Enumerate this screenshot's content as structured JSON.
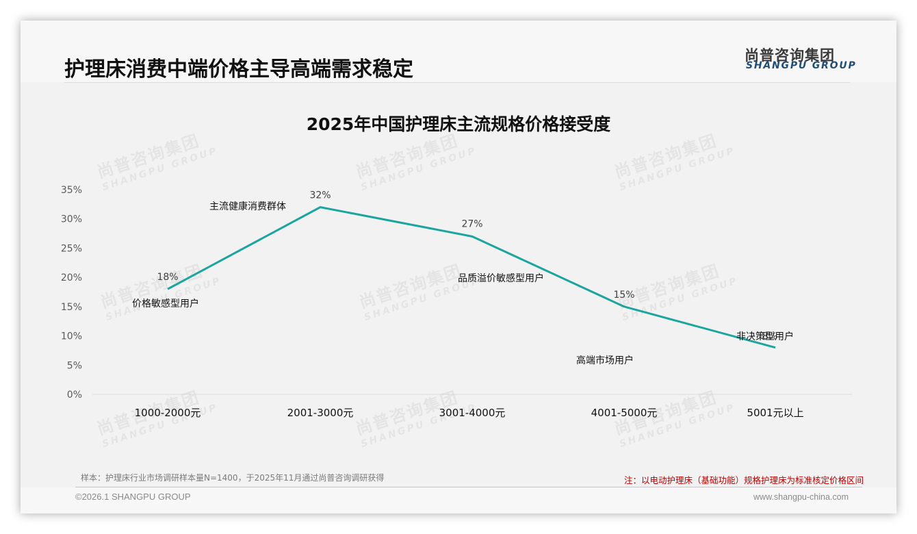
{
  "page": {
    "title": "护理床消费中端价格主导高端需求稳定",
    "logo": {
      "cn": "尚普咨询集团",
      "en": "SHANGPU GROUP"
    },
    "watermark": {
      "cn": "尚普咨询集团",
      "en": "SHANGPU GROUP"
    },
    "sample_note": "样本：护理床行业市场调研样本量N=1400，于2025年11月通过尚普咨询调研获得",
    "red_note": "注：以电动护理床（基础功能）规格护理床为标准核定价格区间",
    "copyright": "©2026.1 SHANGPU GROUP",
    "website": "www.shangpu-china.com"
  },
  "colors": {
    "line": "#1aa59e",
    "background": "#f2f2f2",
    "note_red": "#c00000",
    "logo_blue": "#1f4e79"
  },
  "chart_data": {
    "type": "line",
    "title": "2025年中国护理床主流规格价格接受度",
    "xlabel": "",
    "ylabel": "",
    "categories": [
      "1000-2000元",
      "2001-3000元",
      "3001-4000元",
      "4001-5000元",
      "5001元以上"
    ],
    "series": [
      {
        "name": "价格接受度",
        "values": [
          18,
          32,
          27,
          15,
          8
        ]
      }
    ],
    "value_labels": [
      "18%",
      "32%",
      "27%",
      "15%",
      "8%"
    ],
    "annotations": [
      "价格敏感型用户",
      "主流健康消费群体",
      "品质溢价敏感型用户",
      "高端市场用户",
      "非决策型用户"
    ],
    "yticks": [
      "0%",
      "5%",
      "10%",
      "15%",
      "20%",
      "25%",
      "30%",
      "35%"
    ],
    "ylim": [
      0,
      35
    ],
    "grid": false,
    "legend": "none"
  }
}
